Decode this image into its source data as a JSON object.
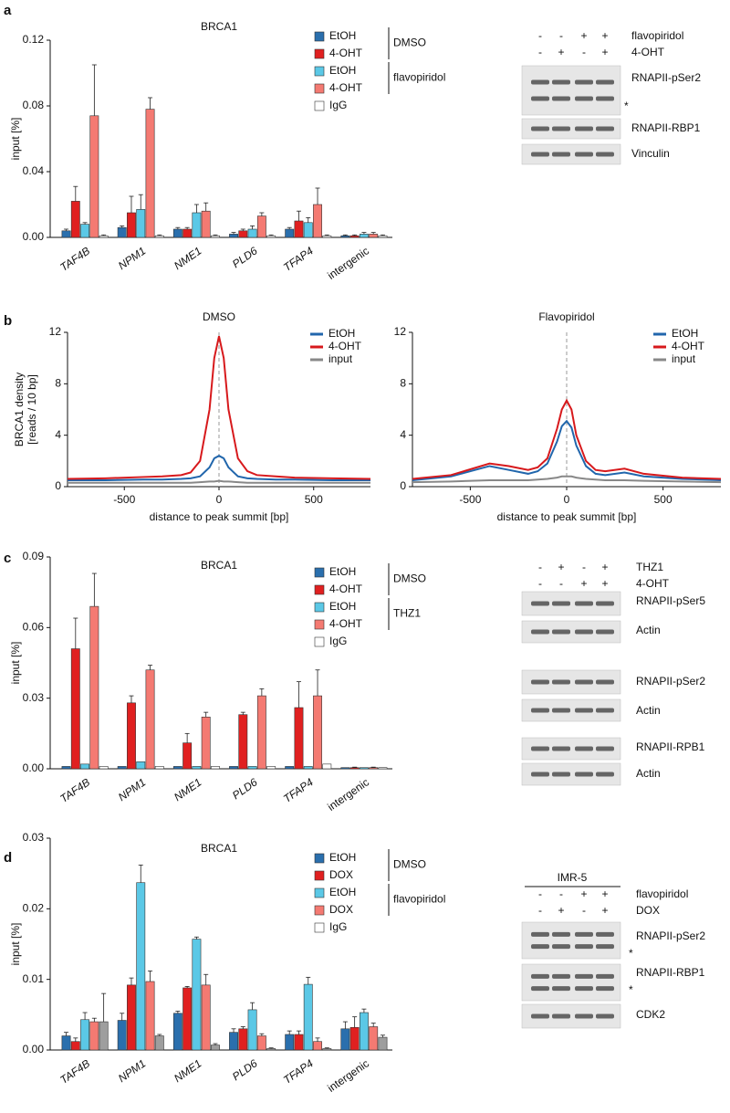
{
  "panels": [
    "a",
    "b",
    "c",
    "d"
  ],
  "chart_data": [
    {
      "type": "bar",
      "title": "BRCA1",
      "ylabel": "input [%]",
      "categories": [
        "TAF4B",
        "NPM1",
        "NME1",
        "PLD6",
        "TFAP4",
        "intergenic"
      ],
      "legend_groups": [
        "DMSO",
        "flavopiridol"
      ],
      "ylim": [
        0,
        0.12
      ],
      "yticks": [
        {
          "value": 0,
          "label": "0.00"
        },
        {
          "value": 0.04,
          "label": "0.04"
        },
        {
          "value": 0.08,
          "label": "0.08"
        },
        {
          "value": 0.12,
          "label": "0.12"
        }
      ],
      "series": [
        {
          "name": "EtOH",
          "color": "#2a6fad",
          "values": [
            0.004,
            0.006,
            0.005,
            0.002,
            0.005,
            0.001
          ],
          "errors": [
            0.001,
            0.001,
            0.001,
            0.001,
            0.001,
            0.0005
          ]
        },
        {
          "name": "4-OHT",
          "color": "#e02020",
          "values": [
            0.022,
            0.015,
            0.005,
            0.004,
            0.01,
            0.001
          ],
          "errors": [
            0.009,
            0.01,
            0.001,
            0.001,
            0.006,
            0.0005
          ]
        },
        {
          "name": "EtOH",
          "color": "#5bc8e6",
          "values": [
            0.008,
            0.017,
            0.015,
            0.005,
            0.009,
            0.002
          ],
          "errors": [
            0.001,
            0.009,
            0.005,
            0.002,
            0.003,
            0.001
          ]
        },
        {
          "name": "4-OHT",
          "color": "#f47a72",
          "values": [
            0.074,
            0.078,
            0.016,
            0.013,
            0.02,
            0.002
          ],
          "errors": [
            0.031,
            0.007,
            0.005,
            0.002,
            0.01,
            0.001
          ]
        },
        {
          "name": "IgG",
          "color": "#ffffff",
          "values": [
            0.001,
            0.001,
            0.001,
            0.001,
            0.001,
            0.001
          ],
          "errors": [
            0.0005,
            0.0005,
            0.0005,
            0.0005,
            0.0005,
            0.0005
          ]
        }
      ]
    },
    {
      "type": "line",
      "title": "DMSO",
      "ylabel": [
        "BRCA1 density",
        "[reads / 10 bp]"
      ],
      "xlabel": "distance to peak summit [bp]",
      "x": [
        -800,
        -600,
        -400,
        -300,
        -200,
        -150,
        -100,
        -50,
        -25,
        0,
        25,
        50,
        100,
        150,
        200,
        300,
        400,
        600,
        800
      ],
      "xlim": [
        -800,
        800
      ],
      "xticks": [
        -500,
        0,
        500
      ],
      "ylim": [
        0,
        12
      ],
      "yticks": [
        0,
        4,
        8,
        12
      ],
      "series": [
        {
          "name": "EtOH",
          "color": "#2166ac",
          "values": [
            0.5,
            0.5,
            0.55,
            0.55,
            0.6,
            0.65,
            0.8,
            1.5,
            2.2,
            2.4,
            2.2,
            1.5,
            0.8,
            0.65,
            0.6,
            0.55,
            0.55,
            0.5,
            0.5
          ]
        },
        {
          "name": "4-OHT",
          "color": "#d7191c",
          "values": [
            0.6,
            0.65,
            0.75,
            0.8,
            0.9,
            1.1,
            2.0,
            6.0,
            10,
            11.7,
            10,
            6.0,
            2.2,
            1.2,
            0.9,
            0.8,
            0.7,
            0.65,
            0.6
          ]
        },
        {
          "name": "input",
          "color": "#888888",
          "values": [
            0.3,
            0.3,
            0.3,
            0.3,
            0.3,
            0.3,
            0.35,
            0.4,
            0.4,
            0.45,
            0.4,
            0.4,
            0.35,
            0.3,
            0.3,
            0.3,
            0.3,
            0.3,
            0.3
          ]
        }
      ]
    },
    {
      "type": "line",
      "title": "Flavopiridol",
      "xlabel": "distance to peak summit [bp]",
      "x": [
        -800,
        -600,
        -400,
        -300,
        -200,
        -150,
        -100,
        -50,
        -25,
        0,
        25,
        50,
        100,
        150,
        200,
        300,
        400,
        600,
        800
      ],
      "xlim": [
        -800,
        800
      ],
      "xticks": [
        -500,
        0,
        500
      ],
      "ylim": [
        0,
        12
      ],
      "yticks": [
        0,
        4,
        8,
        12
      ],
      "series": [
        {
          "name": "EtOH",
          "color": "#2166ac",
          "values": [
            0.5,
            0.8,
            1.6,
            1.3,
            1.0,
            1.2,
            1.8,
            3.5,
            4.7,
            5.1,
            4.6,
            3.2,
            1.6,
            1.0,
            0.9,
            1.1,
            0.8,
            0.6,
            0.5
          ]
        },
        {
          "name": "4-OHT",
          "color": "#d7191c",
          "values": [
            0.6,
            0.9,
            1.8,
            1.6,
            1.3,
            1.5,
            2.2,
            4.5,
            6.0,
            6.7,
            6.0,
            4.0,
            2.0,
            1.3,
            1.2,
            1.4,
            1.0,
            0.7,
            0.6
          ]
        },
        {
          "name": "input",
          "color": "#888888",
          "values": [
            0.35,
            0.4,
            0.5,
            0.5,
            0.5,
            0.55,
            0.6,
            0.7,
            0.8,
            0.8,
            0.8,
            0.7,
            0.6,
            0.55,
            0.5,
            0.5,
            0.45,
            0.4,
            0.35
          ]
        }
      ]
    },
    {
      "type": "bar",
      "title": "BRCA1",
      "ylabel": "input [%]",
      "categories": [
        "TAF4B",
        "NPM1",
        "NME1",
        "PLD6",
        "TFAP4",
        "intergenic"
      ],
      "legend_groups": [
        "DMSO",
        "THZ1"
      ],
      "ylim": [
        0,
        0.09
      ],
      "yticks": [
        {
          "value": 0,
          "label": "0.00"
        },
        {
          "value": 0.03,
          "label": "0.03"
        },
        {
          "value": 0.06,
          "label": "0.06"
        },
        {
          "value": 0.09,
          "label": "0.09"
        }
      ],
      "series": [
        {
          "name": "EtOH",
          "color": "#2a6fad",
          "values": [
            0.001,
            0.001,
            0.001,
            0.001,
            0.001,
            0.0005
          ]
        },
        {
          "name": "4-OHT",
          "color": "#e02020",
          "values": [
            0.051,
            0.028,
            0.011,
            0.023,
            0.026,
            0.0005
          ],
          "errors": [
            0.013,
            0.003,
            0.004,
            0.001,
            0.011,
            0.0002
          ]
        },
        {
          "name": "EtOH",
          "color": "#5bc8e6",
          "values": [
            0.002,
            0.003,
            0.001,
            0.001,
            0.001,
            0.0005
          ]
        },
        {
          "name": "4-OHT",
          "color": "#f47a72",
          "values": [
            0.069,
            0.042,
            0.022,
            0.031,
            0.031,
            0.0005
          ],
          "errors": [
            0.014,
            0.002,
            0.002,
            0.003,
            0.011,
            0.0002
          ]
        },
        {
          "name": "IgG",
          "color": "#ffffff",
          "values": [
            0.001,
            0.001,
            0.001,
            0.001,
            0.002,
            0.0005
          ]
        }
      ]
    },
    {
      "type": "bar",
      "title": "BRCA1",
      "ylabel": "input [%]",
      "categories": [
        "TAF4B",
        "NPM1",
        "NME1",
        "PLD6",
        "TFAP4",
        "intergenic"
      ],
      "legend_groups": [
        "DMSO",
        "flavopiridol"
      ],
      "ylim": [
        0,
        0.03
      ],
      "yticks": [
        {
          "value": 0,
          "label": "0.00"
        },
        {
          "value": 0.01,
          "label": "0.01"
        },
        {
          "value": 0.02,
          "label": "0.02"
        },
        {
          "value": 0.03,
          "label": "0.03"
        }
      ],
      "series": [
        {
          "name": "EtOH",
          "color": "#2a6fad",
          "values": [
            0.002,
            0.0042,
            0.0052,
            0.0025,
            0.0022,
            0.003
          ],
          "errors": [
            0.0005,
            0.001,
            0.0003,
            0.0005,
            0.0005,
            0.001
          ]
        },
        {
          "name": "DOX",
          "color": "#e02020",
          "values": [
            0.0012,
            0.0092,
            0.0088,
            0.003,
            0.0022,
            0.0032
          ],
          "errors": [
            0.0005,
            0.001,
            0.0002,
            0.0003,
            0.0005,
            0.0015
          ]
        },
        {
          "name": "EtOH",
          "color": "#5bc8e6",
          "values": [
            0.0043,
            0.0237,
            0.0157,
            0.0057,
            0.0093,
            0.0053
          ],
          "errors": [
            0.001,
            0.0025,
            0.0003,
            0.001,
            0.001,
            0.0005
          ]
        },
        {
          "name": "DOX",
          "color": "#f47a72",
          "values": [
            0.004,
            0.0097,
            0.0092,
            0.002,
            0.0012,
            0.0033
          ],
          "errors": [
            0.0005,
            0.0015,
            0.0015,
            0.0003,
            0.0005,
            0.0005
          ]
        },
        {
          "name": "IgG",
          "color": "#9e9e9e",
          "values": [
            0.004,
            0.002,
            0.0007,
            0.0002,
            0.0002,
            0.0018
          ],
          "errors": [
            0.004,
            0.0002,
            0.0002,
            0.0001,
            0.0001,
            0.0003
          ]
        }
      ]
    }
  ],
  "blots": [
    {
      "conditions": [
        {
          "name": "flavopiridol",
          "signs": [
            "-",
            "-",
            "+",
            "+"
          ]
        },
        {
          "name": "4-OHT",
          "signs": [
            "-",
            "+",
            "-",
            "+"
          ]
        }
      ],
      "rows": [
        "RNAPII-pSer2",
        "*",
        "RNAPII-RBP1",
        "Vinculin"
      ]
    },
    {
      "conditions": [
        {
          "name": "THZ1",
          "signs": [
            "-",
            "+",
            "-",
            "+"
          ]
        },
        {
          "name": "4-OHT",
          "signs": [
            "-",
            "-",
            "+",
            "+"
          ]
        }
      ],
      "rows": [
        "RNAPII-pSer5",
        "Actin",
        "RNAPII-pSer2",
        "Actin",
        "RNAPII-RPB1",
        "Actin"
      ]
    },
    {
      "header": "IMR-5",
      "conditions": [
        {
          "name": "flavopiridol",
          "signs": [
            "-",
            "-",
            "+",
            "+"
          ]
        },
        {
          "name": "DOX",
          "signs": [
            "-",
            "+",
            "-",
            "+"
          ]
        }
      ],
      "rows": [
        "RNAPII-pSer2",
        "*",
        "RNAPII-RBP1",
        "*",
        "CDK2"
      ]
    }
  ]
}
